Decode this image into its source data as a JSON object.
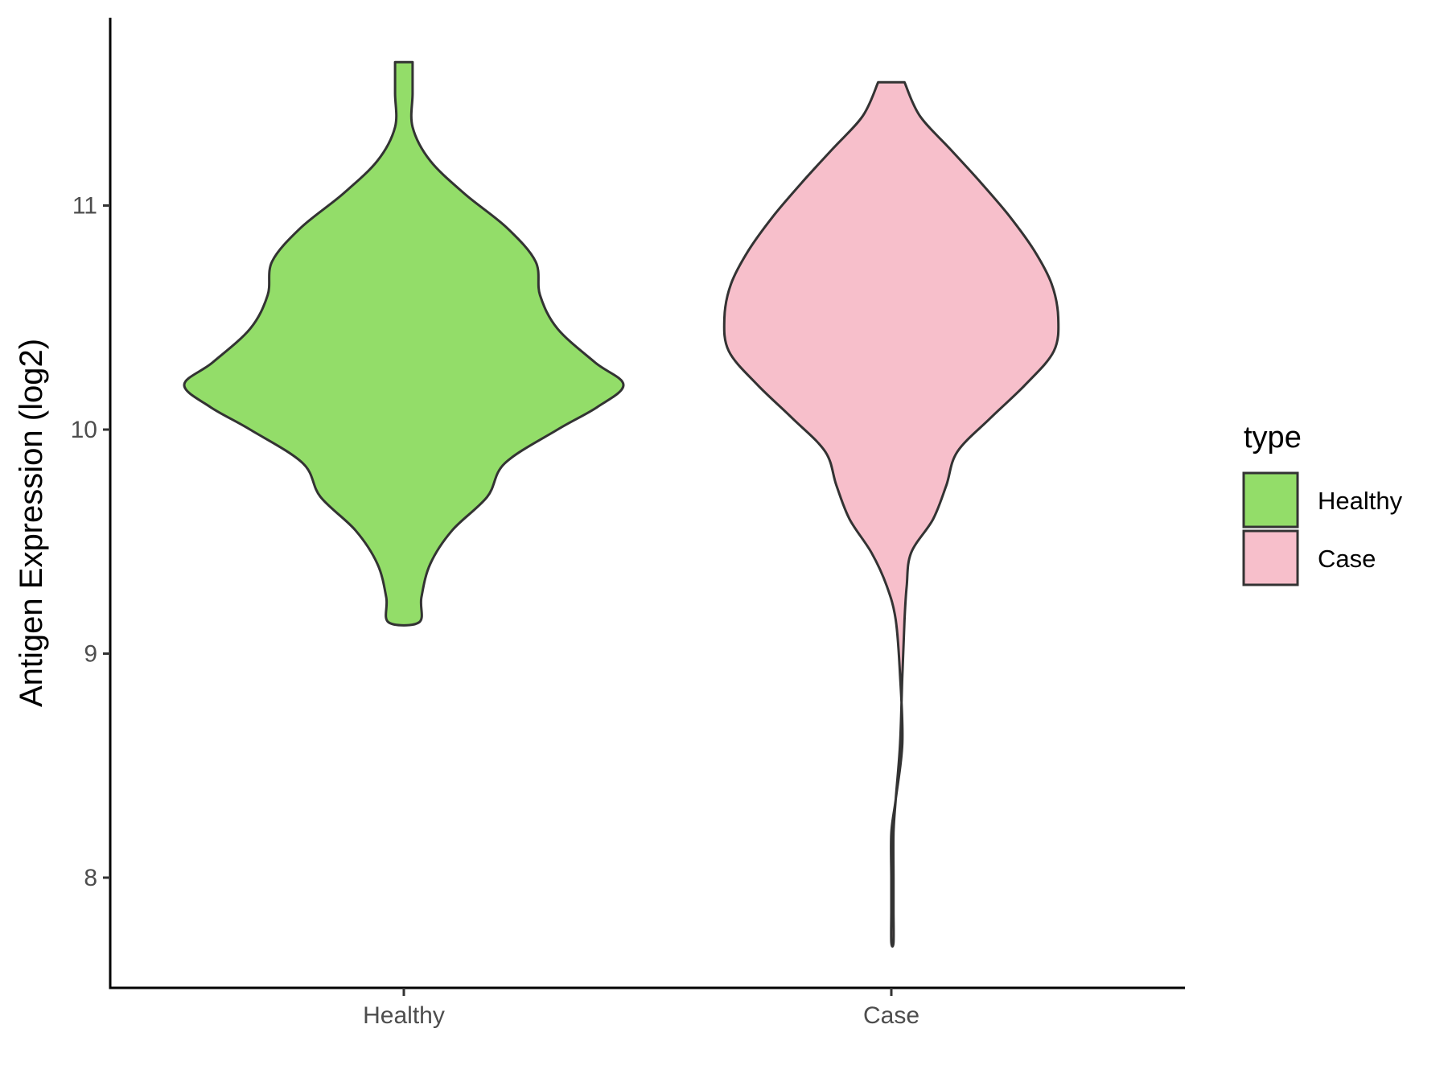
{
  "chart_data": {
    "type": "violin",
    "ylabel": "Antigen Expression (log2)",
    "xlabel": "",
    "categories": [
      "Healthy",
      "Case"
    ],
    "ylim": [
      7.52,
      11.82
    ],
    "yticks": [
      8,
      9,
      10,
      11
    ],
    "grid": false,
    "legend": {
      "title": "type",
      "position": "right",
      "entries": [
        {
          "label": "Healthy",
          "color": "#93dd69"
        },
        {
          "label": "Case",
          "color": "#f7bfcb"
        }
      ]
    },
    "series": [
      {
        "category": "Healthy",
        "color": "#93dd69",
        "min": 9.14,
        "max": 11.64,
        "profile": [
          [
            11.64,
            0.04
          ],
          [
            11.5,
            0.04
          ],
          [
            11.35,
            0.04
          ],
          [
            11.2,
            0.12
          ],
          [
            11.05,
            0.28
          ],
          [
            10.9,
            0.47
          ],
          [
            10.75,
            0.6
          ],
          [
            10.6,
            0.62
          ],
          [
            10.45,
            0.7
          ],
          [
            10.3,
            0.87
          ],
          [
            10.2,
            1.0
          ],
          [
            10.1,
            0.88
          ],
          [
            10.0,
            0.7
          ],
          [
            9.85,
            0.46
          ],
          [
            9.7,
            0.38
          ],
          [
            9.55,
            0.22
          ],
          [
            9.4,
            0.12
          ],
          [
            9.25,
            0.08
          ],
          [
            9.14,
            0.07
          ]
        ]
      },
      {
        "category": "Case",
        "color": "#f7bfcb",
        "min": 7.71,
        "max": 11.55,
        "profile": [
          [
            11.55,
            0.06
          ],
          [
            11.4,
            0.13
          ],
          [
            11.25,
            0.27
          ],
          [
            11.1,
            0.41
          ],
          [
            10.95,
            0.54
          ],
          [
            10.8,
            0.65
          ],
          [
            10.65,
            0.73
          ],
          [
            10.5,
            0.76
          ],
          [
            10.35,
            0.74
          ],
          [
            10.2,
            0.61
          ],
          [
            10.05,
            0.45
          ],
          [
            9.9,
            0.3
          ],
          [
            9.75,
            0.25
          ],
          [
            9.6,
            0.19
          ],
          [
            9.45,
            0.09
          ],
          [
            9.3,
            0.02
          ],
          [
            9.15,
            -0.02
          ],
          [
            8.9,
            -0.04
          ],
          [
            8.6,
            -0.05
          ],
          [
            8.35,
            -0.02
          ],
          [
            8.2,
            0.0
          ],
          [
            8.0,
            0.0
          ],
          [
            7.85,
            0.0
          ],
          [
            7.71,
            0.0
          ]
        ],
        "profile_right": [
          [
            11.55,
            0.06
          ],
          [
            11.4,
            0.13
          ],
          [
            11.25,
            0.27
          ],
          [
            11.1,
            0.41
          ],
          [
            10.95,
            0.54
          ],
          [
            10.8,
            0.65
          ],
          [
            10.65,
            0.73
          ],
          [
            10.5,
            0.76
          ],
          [
            10.35,
            0.74
          ],
          [
            10.2,
            0.61
          ],
          [
            10.05,
            0.45
          ],
          [
            9.9,
            0.3
          ],
          [
            9.75,
            0.25
          ],
          [
            9.6,
            0.19
          ],
          [
            9.45,
            0.09
          ],
          [
            9.3,
            0.07
          ],
          [
            9.15,
            0.06
          ],
          [
            8.9,
            0.05
          ],
          [
            8.6,
            0.04
          ],
          [
            8.35,
            0.02
          ],
          [
            8.2,
            0.01
          ],
          [
            8.0,
            0.01
          ],
          [
            7.85,
            0.01
          ],
          [
            7.71,
            0.01
          ]
        ]
      }
    ]
  }
}
